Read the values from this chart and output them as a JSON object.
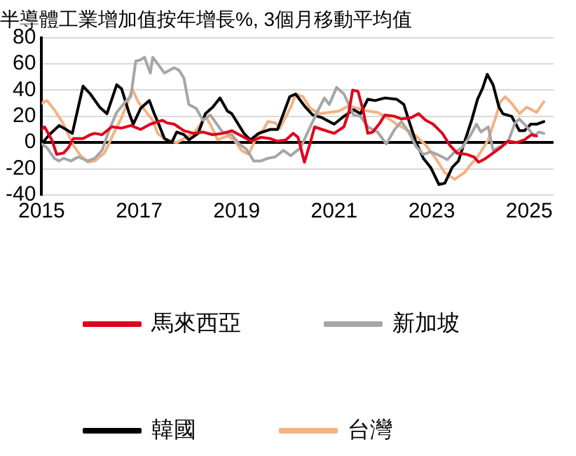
{
  "chart_data": {
    "type": "line",
    "title": "半導體工業增加值按年增長%, 3個月移動平均值",
    "xlim": [
      2015,
      2025.5
    ],
    "xticks": [
      2015,
      2017,
      2019,
      2021,
      2023,
      2025
    ],
    "ylim": [
      -40,
      80
    ],
    "yticks": [
      -40,
      -20,
      0,
      20,
      40,
      60,
      80
    ],
    "grid": "y",
    "legend": "bottom",
    "marker": "none",
    "line_style": "solid",
    "series": [
      {
        "name": "馬來西亞",
        "color": "#e0001b",
        "x": [
          2015,
          2015.06,
          2015.21,
          2015.31,
          2015.45,
          2015.55,
          2015.65,
          2015.85,
          2016,
          2016.09,
          2016.24,
          2016.44,
          2016.64,
          2016.83,
          2017.03,
          2017.23,
          2017.48,
          2017.57,
          2017.72,
          2017.92,
          2018.12,
          2018.31,
          2018.51,
          2018.71,
          2018.9,
          2019.1,
          2019.3,
          2019.5,
          2019.69,
          2019.84,
          2020.01,
          2020.16,
          2020.26,
          2020.39,
          2020.51,
          2020.6,
          2020.75,
          2021,
          2021.2,
          2021.3,
          2021.38,
          2021.49,
          2021.59,
          2021.69,
          2021.79,
          2021.94,
          2022.04,
          2022.24,
          2022.38,
          2022.58,
          2022.73,
          2022.88,
          2023.03,
          2023.22,
          2023.37,
          2023.52,
          2023.72,
          2023.87,
          2023.96,
          2024.11,
          2024.26,
          2024.41,
          2024.56,
          2024.75,
          2024.9,
          2025.05,
          2025.15
        ],
        "values": [
          10,
          12,
          2,
          -9,
          -8,
          -4,
          3,
          3,
          6,
          7,
          6,
          12,
          11,
          13,
          10,
          14,
          17,
          15,
          14,
          9,
          7,
          8,
          6,
          7,
          9,
          5,
          1,
          4,
          3,
          1,
          2,
          7,
          4,
          -15,
          0,
          12,
          10,
          7,
          12,
          23,
          40,
          39,
          25,
          7,
          8,
          15,
          21,
          20,
          18,
          19,
          22,
          17,
          14,
          7,
          -2,
          -8,
          -9,
          -11,
          -15,
          -12,
          -8,
          -4,
          1,
          0,
          2,
          6,
          5
        ]
      },
      {
        "name": "新加坡",
        "color": "#a6a6a6",
        "x": [
          2015,
          2015.11,
          2015.26,
          2015.36,
          2015.45,
          2015.6,
          2015.75,
          2015.95,
          2016.09,
          2016.24,
          2016.39,
          2016.54,
          2016.74,
          2016.83,
          2016.93,
          2017.03,
          2017.11,
          2017.23,
          2017.28,
          2017.52,
          2017.72,
          2017.82,
          2017.92,
          2018.02,
          2018.17,
          2018.31,
          2018.46,
          2018.71,
          2018.9,
          2019.05,
          2019.2,
          2019.35,
          2019.5,
          2019.64,
          2019.79,
          2019.96,
          2020.11,
          2020.31,
          2020.51,
          2020.65,
          2020.8,
          2020.9,
          2021.05,
          2021.2,
          2021.4,
          2021.54,
          2021.69,
          2021.89,
          2022.07,
          2022.24,
          2022.38,
          2022.53,
          2022.68,
          2022.83,
          2022.98,
          2023.17,
          2023.32,
          2023.45,
          2023.62,
          2023.77,
          2023.92,
          2024.01,
          2024.16,
          2024.26,
          2024.41,
          2024.56,
          2024.71,
          2024.8,
          2024.95,
          2025.1,
          2025.2,
          2025.3
        ],
        "values": [
          -1,
          -4,
          -12,
          -14,
          -12,
          -14,
          -11,
          -14,
          -12,
          -6,
          10,
          23,
          32,
          35,
          62,
          63,
          65,
          53,
          65,
          53,
          57,
          55,
          49,
          29,
          26,
          17,
          21,
          8,
          6,
          -1,
          -5,
          -14,
          -14,
          -12,
          -11,
          -6,
          -10,
          -4,
          12,
          23,
          34,
          29,
          42,
          37,
          21,
          20,
          12,
          8,
          -1,
          10,
          16,
          8,
          -3,
          -9,
          -7,
          -10,
          -13,
          -8,
          -4,
          4,
          14,
          8,
          12,
          -6,
          -3,
          0,
          15,
          18,
          12,
          5,
          8,
          7
        ]
      },
      {
        "name": "韓國",
        "color": "#000000",
        "x": [
          2015,
          2015.16,
          2015.36,
          2015.5,
          2015.63,
          2015.85,
          2016,
          2016.19,
          2016.34,
          2016.54,
          2016.64,
          2016.79,
          2016.88,
          2017.03,
          2017.21,
          2017.31,
          2017.38,
          2017.52,
          2017.67,
          2017.77,
          2017.92,
          2018.02,
          2018.21,
          2018.36,
          2018.51,
          2018.66,
          2018.81,
          2018.9,
          2019.15,
          2019.28,
          2019.45,
          2019.69,
          2019.84,
          2020.09,
          2020.21,
          2020.41,
          2020.56,
          2020.75,
          2021,
          2021.2,
          2021.4,
          2021.54,
          2021.69,
          2021.84,
          2022.04,
          2022.28,
          2022.43,
          2022.53,
          2022.68,
          2022.83,
          2022.98,
          2023.15,
          2023.27,
          2023.42,
          2023.55,
          2023.67,
          2023.82,
          2023.94,
          2024.04,
          2024.14,
          2024.26,
          2024.38,
          2024.46,
          2024.64,
          2024.8,
          2024.9,
          2025.03,
          2025.15,
          2025.3
        ],
        "values": [
          -1,
          6,
          13,
          10,
          7,
          43,
          37,
          27,
          22,
          44,
          41,
          23,
          14,
          26,
          32,
          22,
          16,
          3,
          0,
          8,
          6,
          2,
          7,
          22,
          27,
          34,
          24,
          22,
          7,
          2,
          7,
          10,
          10,
          35,
          37,
          27,
          21,
          19,
          14,
          20,
          25,
          22,
          33,
          32,
          34,
          33,
          29,
          17,
          0,
          -12,
          -19,
          -32,
          -31,
          -19,
          -14,
          0,
          17,
          33,
          41,
          52,
          44,
          27,
          22,
          20,
          9,
          9,
          14,
          14,
          16
        ]
      },
      {
        "name": "台灣",
        "color": "#f4b183",
        "x": [
          2015,
          2015.11,
          2015.26,
          2015.45,
          2015.65,
          2015.8,
          2015.95,
          2016.09,
          2016.29,
          2016.44,
          2016.64,
          2016.79,
          2016.86,
          2016.98,
          2017.13,
          2017.28,
          2017.38,
          2017.52,
          2017.67,
          2017.77,
          2017.92,
          2018.12,
          2018.22,
          2018.36,
          2018.46,
          2018.61,
          2018.81,
          2018.95,
          2019.1,
          2019.25,
          2019.4,
          2019.55,
          2019.64,
          2019.79,
          2019.89,
          2020.11,
          2020.21,
          2020.36,
          2020.51,
          2020.7,
          2020.9,
          2021.1,
          2021.3,
          2021.49,
          2021.69,
          2021.89,
          2022.09,
          2022.28,
          2022.48,
          2022.68,
          2022.88,
          2023.08,
          2023.27,
          2023.47,
          2023.67,
          2023.82,
          2023.96,
          2024.16,
          2024.31,
          2024.41,
          2024.51,
          2024.66,
          2024.8,
          2024.95,
          2025.15,
          2025.3
        ],
        "values": [
          30,
          32,
          25,
          14,
          -2,
          -10,
          -15,
          -14,
          -8,
          4,
          19,
          33,
          41,
          31,
          24,
          17,
          7,
          3,
          1,
          0,
          3,
          7,
          12,
          20,
          14,
          2,
          5,
          2,
          -6,
          -9,
          4,
          10,
          16,
          15,
          11,
          27,
          37,
          35,
          26,
          22,
          23,
          24,
          28,
          26,
          24,
          23,
          19,
          14,
          10,
          5,
          -2,
          -12,
          -23,
          -28,
          -23,
          -16,
          -10,
          2,
          19,
          31,
          35,
          29,
          22,
          27,
          23,
          31
        ]
      }
    ]
  }
}
